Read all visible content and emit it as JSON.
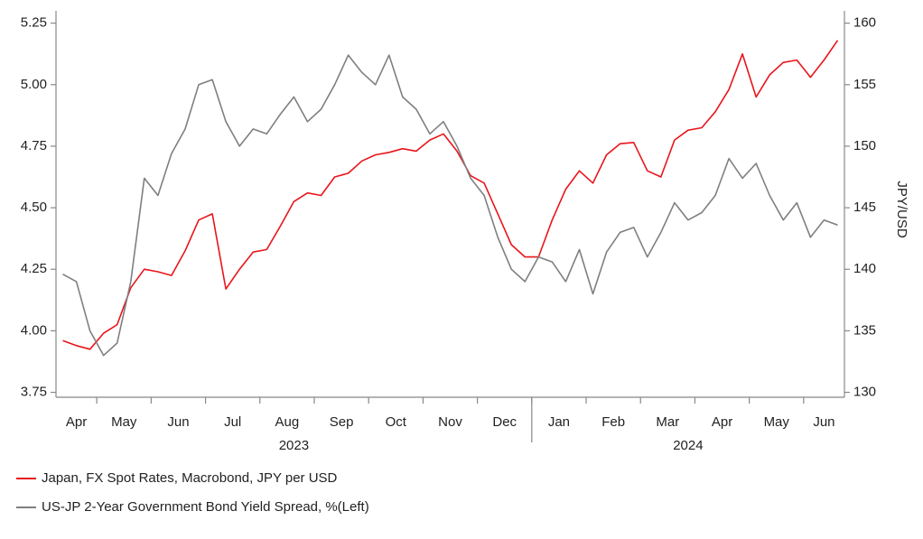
{
  "chart_data": {
    "type": "line",
    "categories": [
      "Apr",
      null,
      null,
      "May",
      null,
      null,
      null,
      "Jun",
      null,
      null,
      null,
      "Jul",
      null,
      null,
      null,
      "Aug",
      null,
      null,
      null,
      "Sep",
      null,
      null,
      null,
      "Oct",
      null,
      null,
      null,
      "Nov",
      null,
      null,
      null,
      "Dec",
      null,
      null,
      null,
      "Jan",
      null,
      null,
      null,
      "Feb",
      null,
      null,
      null,
      "Mar",
      null,
      null,
      null,
      "Apr",
      null,
      null,
      null,
      "May",
      null,
      null,
      null,
      "Jun",
      null,
      null
    ],
    "years": [
      "2023",
      "2024"
    ],
    "series": [
      {
        "name": "Japan, FX Spot Rates, Macrobond, JPY per USD",
        "color": "#e8151b",
        "axis": "y2",
        "values": [
          134.2,
          133.8,
          133.5,
          134.8,
          135.5,
          138.5,
          140.0,
          139.8,
          139.5,
          141.5,
          144.0,
          144.5,
          138.4,
          140.0,
          141.4,
          141.6,
          143.5,
          145.5,
          146.2,
          146.0,
          147.5,
          147.8,
          148.8,
          149.3,
          149.5,
          149.8,
          149.6,
          150.5,
          151.0,
          149.6,
          147.6,
          147.0,
          144.5,
          142.0,
          141.0,
          141.0,
          144.0,
          146.5,
          148.0,
          147.0,
          149.3,
          150.2,
          150.3,
          148.0,
          147.5,
          150.5,
          151.3,
          151.5,
          152.8,
          154.6,
          157.5,
          154.0,
          155.8,
          156.8,
          157.0,
          155.6,
          157.0,
          158.6
        ]
      },
      {
        "name": "US-JP 2-Year Government Bond Yield Spread, %(Left)",
        "color": "#7f7f7f",
        "values": [
          4.23,
          4.2,
          4.0,
          3.9,
          3.95,
          4.2,
          4.62,
          4.55,
          4.72,
          4.82,
          5.0,
          5.02,
          4.85,
          4.75,
          4.82,
          4.8,
          4.88,
          4.95,
          4.85,
          4.9,
          5.0,
          5.12,
          5.05,
          5.0,
          5.12,
          4.95,
          4.9,
          4.8,
          4.85,
          4.75,
          4.62,
          4.55,
          4.38,
          4.25,
          4.2,
          4.3,
          4.28,
          4.2,
          4.33,
          4.15,
          4.32,
          4.4,
          4.42,
          4.3,
          4.4,
          4.52,
          4.45,
          4.48,
          4.55,
          4.7,
          4.62,
          4.68,
          4.55,
          4.45,
          4.52,
          4.38,
          4.45,
          4.43
        ]
      }
    ],
    "ylim": [
      3.73,
      5.3
    ],
    "yticks": [
      3.75,
      {
        "value": 4,
        "label": "4.00"
      },
      4.25,
      {
        "value": 4.5,
        "label": "4.50"
      },
      4.75,
      {
        "value": 5,
        "label": "5.00"
      },
      5.25
    ],
    "y2label": "JPY/USD",
    "y2lim": [
      129.6,
      161.0
    ],
    "y2ticks": [
      130,
      135,
      140,
      145,
      150,
      155,
      160
    ],
    "legend": "bottom-left"
  }
}
